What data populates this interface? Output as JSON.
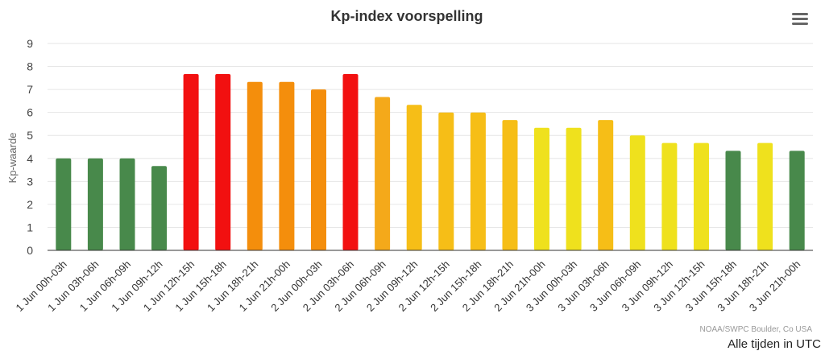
{
  "chart_data": {
    "type": "bar",
    "title": "Kp-index voorspelling",
    "xlabel": "",
    "ylabel": "Kp-waarde",
    "ylim": [
      0,
      9
    ],
    "yticks": [
      0,
      1,
      2,
      3,
      4,
      5,
      6,
      7,
      8,
      9
    ],
    "grid": true,
    "categories": [
      "1 Jun 00h-03h",
      "1 Jun 03h-06h",
      "1 Jun 06h-09h",
      "1 Jun 09h-12h",
      "1 Jun 12h-15h",
      "1 Jun 15h-18h",
      "1 Jun 18h-21h",
      "1 Jun 21h-00h",
      "2 Jun 00h-03h",
      "2 Jun 03h-06h",
      "2 Jun 06h-09h",
      "2 Jun 09h-12h",
      "2 Jun 12h-15h",
      "2 Jun 15h-18h",
      "2 Jun 18h-21h",
      "2 Jun 21h-00h",
      "3 Jun 00h-03h",
      "3 Jun 03h-06h",
      "3 Jun 06h-09h",
      "3 Jun 09h-12h",
      "3 Jun 12h-15h",
      "3 Jun 15h-18h",
      "3 Jun 18h-21h",
      "3 Jun 21h-00h"
    ],
    "values": [
      4.0,
      4.0,
      4.0,
      3.67,
      7.67,
      7.67,
      7.33,
      7.33,
      7.0,
      7.67,
      6.67,
      6.33,
      6.0,
      6.0,
      5.67,
      5.33,
      5.33,
      5.67,
      5.0,
      4.67,
      4.67,
      4.33,
      4.67,
      4.33
    ],
    "colors": [
      "#48894b",
      "#48894b",
      "#48894b",
      "#48894b",
      "#f21010",
      "#f21010",
      "#f48e0c",
      "#f48e0c",
      "#f48e0c",
      "#f21010",
      "#f4a91a",
      "#f6be17",
      "#f6be17",
      "#f6be17",
      "#f6be17",
      "#efe11d",
      "#efe11d",
      "#f6be17",
      "#efe11d",
      "#efe11d",
      "#efe11d",
      "#48894b",
      "#efe11d",
      "#48894b"
    ],
    "credit": "NOAA/SWPC Boulder, Co USA",
    "footer": "Alle tijden in UTC"
  },
  "menu": {
    "icon": "hamburger-menu-icon"
  }
}
